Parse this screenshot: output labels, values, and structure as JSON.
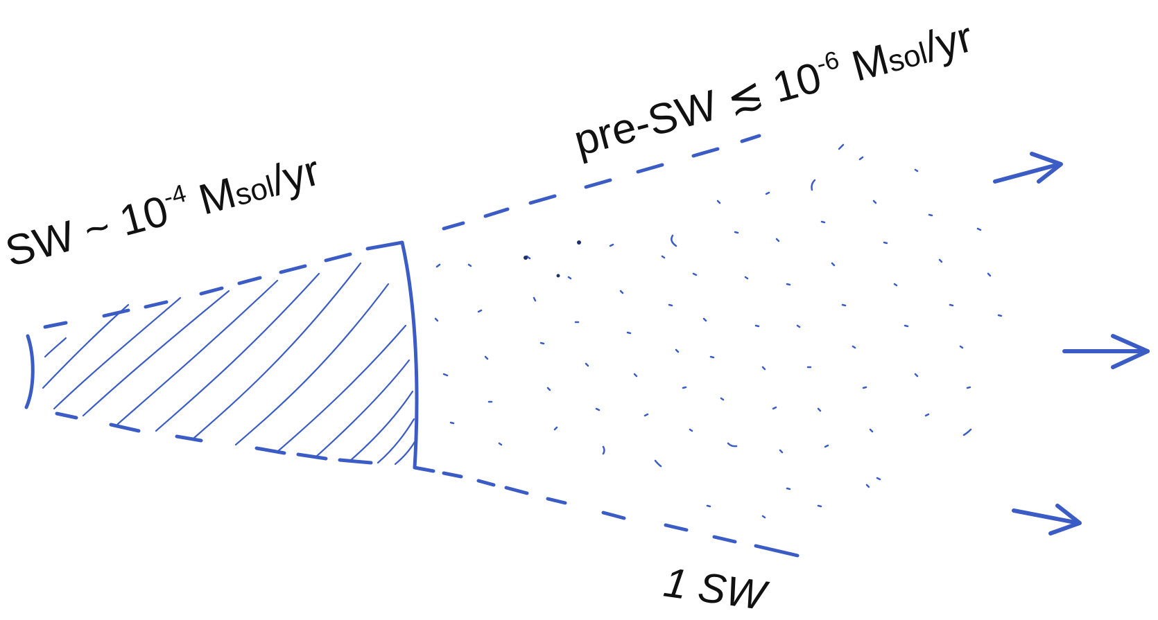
{
  "labels": {
    "sw": {
      "prefix": "SW ~ 10",
      "exponent": "-4",
      "unit_M": " M",
      "unit_sub": "sol",
      "unit_tail": "/yr"
    },
    "pre_sw": {
      "prefix": "pre-SW ≲ 10",
      "exponent": "-6",
      "unit_M": " M",
      "unit_sub": "sol",
      "unit_tail": "/yr"
    },
    "scale": "1 SW"
  },
  "colors": {
    "ink": "#3b5cc4",
    "text": "#111111"
  },
  "arrows": [
    "outflow-arrow-top",
    "outflow-arrow-middle",
    "outflow-arrow-bottom"
  ]
}
